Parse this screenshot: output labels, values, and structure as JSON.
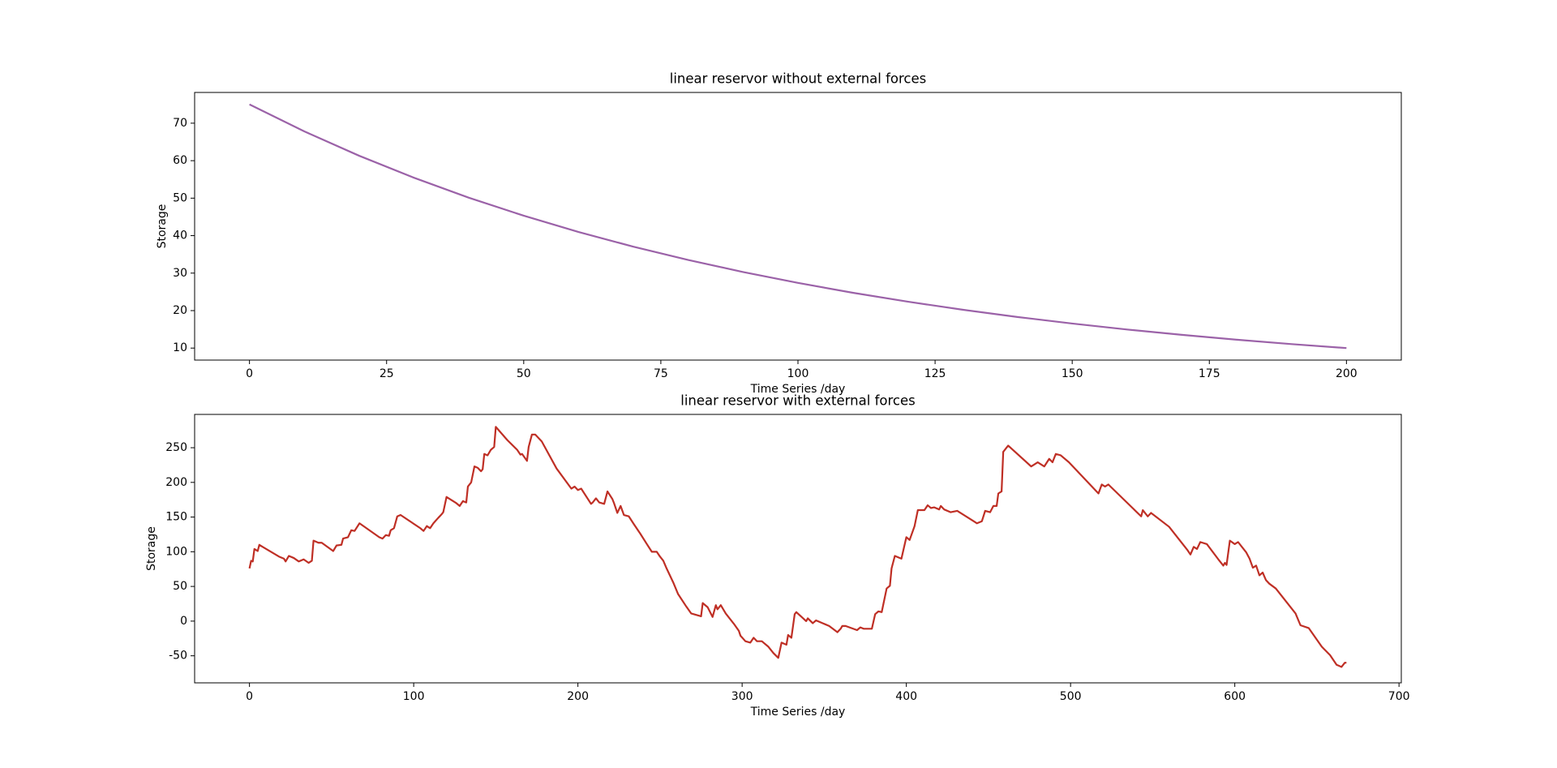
{
  "chart_data": [
    {
      "type": "line",
      "title": "linear reservor without external forces",
      "x_label": "Time Series  /day",
      "y_label": "Storage",
      "color": "#9b62a8",
      "x": [
        0,
        10,
        20,
        30,
        40,
        50,
        60,
        70,
        80,
        90,
        100,
        110,
        120,
        130,
        140,
        150,
        160,
        170,
        180,
        190,
        200
      ],
      "values": [
        75,
        67.81,
        61.31,
        55.44,
        50.12,
        45.32,
        40.98,
        37.05,
        33.5,
        30.29,
        27.39,
        24.76,
        22.39,
        20.24,
        18.3,
        16.55,
        14.96,
        13.53,
        12.23,
        11.06,
        10
      ],
      "xlim": [
        -10,
        210
      ],
      "ylim": [
        6.8,
        78.2
      ],
      "xticks": [
        0,
        25,
        50,
        75,
        100,
        125,
        150,
        175,
        200
      ],
      "yticks": [
        10,
        20,
        30,
        40,
        50,
        60,
        70
      ]
    },
    {
      "type": "line",
      "title": "linear reservor with external forces",
      "x_label": "Time Series /day",
      "y_label": "Storage",
      "color": "#bf2f25",
      "x": [
        0,
        1,
        2,
        3,
        5,
        6,
        8,
        18,
        21,
        22,
        24,
        27,
        30,
        33,
        36,
        38,
        39,
        42,
        44,
        51,
        53,
        56,
        57,
        60,
        62,
        64,
        67,
        79,
        81,
        83,
        85,
        86,
        88,
        90,
        92,
        104,
        106,
        108,
        110,
        112,
        115,
        117,
        118,
        120,
        126,
        128,
        130,
        132,
        133,
        135,
        137,
        139,
        141,
        142,
        143,
        145,
        147,
        149,
        150,
        157,
        163,
        165,
        166,
        169,
        170,
        172,
        174,
        178,
        187,
        196,
        198,
        200,
        202,
        208,
        209,
        211,
        213,
        216,
        218,
        221,
        222,
        224,
        226,
        228,
        231,
        234,
        238,
        242,
        245,
        248,
        250,
        252,
        254,
        258,
        261,
        266,
        269,
        275,
        276,
        279,
        282,
        284,
        285,
        287,
        290,
        295,
        298,
        299,
        302,
        305,
        307,
        309,
        312,
        316,
        319,
        322,
        324,
        327,
        328,
        330,
        332,
        333,
        339,
        340,
        343,
        345,
        353,
        358,
        360,
        361,
        363,
        370,
        372,
        374,
        379,
        381,
        383,
        385,
        388,
        390,
        391,
        393,
        397,
        400,
        402,
        405,
        407,
        411,
        413,
        415,
        417,
        420,
        421,
        423,
        427,
        431,
        441,
        443,
        446,
        448,
        451,
        453,
        455,
        456,
        458,
        459,
        462,
        476,
        480,
        484,
        487,
        489,
        491,
        494,
        499,
        517,
        519,
        521,
        523,
        543,
        544,
        547,
        549,
        560,
        571,
        573,
        575,
        577,
        579,
        583,
        590,
        593,
        594,
        595,
        597,
        600,
        602,
        607,
        609,
        611,
        613,
        615,
        617,
        619,
        621,
        625,
        637,
        640,
        645,
        653,
        658,
        662,
        665,
        667,
        668
      ],
      "values": [
        76,
        87,
        86,
        104,
        101,
        110,
        107,
        93,
        90,
        86,
        94,
        91,
        86,
        89,
        84,
        87,
        116,
        113,
        113,
        101,
        109,
        110,
        119,
        121,
        131,
        130,
        141,
        121,
        119,
        124,
        123,
        131,
        134,
        151,
        153,
        134,
        130,
        137,
        134,
        141,
        149,
        154,
        157,
        179,
        170,
        166,
        173,
        171,
        194,
        200,
        223,
        221,
        216,
        219,
        241,
        239,
        247,
        251,
        280,
        261,
        247,
        240,
        241,
        231,
        251,
        269,
        269,
        259,
        220,
        191,
        194,
        189,
        191,
        169,
        171,
        177,
        171,
        169,
        187,
        176,
        170,
        156,
        166,
        153,
        151,
        140,
        126,
        111,
        100,
        100,
        93,
        87,
        76,
        56,
        39,
        21,
        11,
        7,
        26,
        20,
        6,
        23,
        17,
        23,
        11,
        -4,
        -14,
        -21,
        -29,
        -31,
        -24,
        -29,
        -29,
        -37,
        -46,
        -53,
        -31,
        -34,
        -20,
        -24,
        10,
        13,
        0,
        4,
        -3,
        1,
        -7,
        -16,
        -11,
        -7,
        -7,
        -13,
        -9,
        -11,
        -11,
        10,
        14,
        13,
        47,
        51,
        76,
        94,
        90,
        121,
        117,
        137,
        160,
        160,
        167,
        163,
        164,
        161,
        166,
        161,
        157,
        159,
        144,
        141,
        144,
        159,
        157,
        166,
        166,
        184,
        187,
        244,
        253,
        223,
        229,
        223,
        234,
        229,
        241,
        239,
        229,
        184,
        197,
        194,
        197,
        151,
        160,
        151,
        156,
        136,
        103,
        96,
        107,
        104,
        114,
        111,
        89,
        80,
        84,
        81,
        116,
        111,
        114,
        99,
        90,
        77,
        80,
        66,
        70,
        59,
        54,
        47,
        11,
        -6,
        -10,
        -37,
        -49,
        -63,
        -66,
        -60,
        -60
      ],
      "xlim": [
        -33.4,
        701.4
      ],
      "ylim": [
        -89,
        298
      ],
      "xticks": [
        0,
        100,
        200,
        300,
        400,
        500,
        600,
        700
      ],
      "yticks": [
        -50,
        0,
        50,
        100,
        150,
        200,
        250
      ]
    }
  ]
}
